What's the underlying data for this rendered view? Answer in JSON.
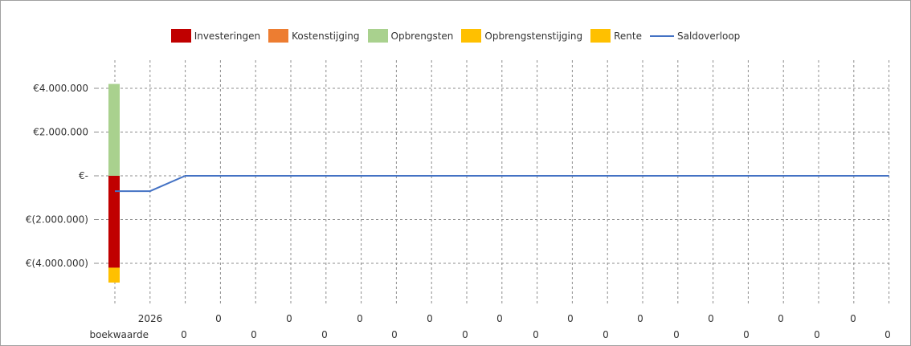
{
  "chart_data": {
    "type": "bar",
    "legend": [
      {
        "name": "Investeringen",
        "color": "#c00000",
        "kind": "bar"
      },
      {
        "name": "Kostenstijging",
        "color": "#ed7d31",
        "kind": "bar"
      },
      {
        "name": "Opbrengsten",
        "color": "#a9d18e",
        "kind": "bar"
      },
      {
        "name": "Opbrengstenstijging",
        "color": "#ffc000",
        "kind": "bar"
      },
      {
        "name": "Rente",
        "color": "#ffc000",
        "kind": "bar"
      },
      {
        "name": "Saldoverloop",
        "color": "#4472c4",
        "kind": "line"
      }
    ],
    "legend_position": "top",
    "y_ticks": [
      {
        "value": 4000000,
        "label": "€4.000.000"
      },
      {
        "value": 2000000,
        "label": "€2.000.000"
      },
      {
        "value": 0,
        "label": "€-"
      },
      {
        "value": -2000000,
        "label": "€(2.000.000)"
      },
      {
        "value": -4000000,
        "label": "€(4.000.000)"
      }
    ],
    "ylim": [
      -5800000,
      5700000
    ],
    "grid": true,
    "bars": {
      "Opbrengsten": 4200000,
      "Investeringen": -4200000,
      "Rente": -680000
    },
    "line_name": "Saldoverloop",
    "line_values": [
      -700000,
      -700000,
      0,
      0,
      0,
      0,
      0,
      0,
      0,
      0,
      0,
      0,
      0,
      0,
      0,
      0,
      0,
      0,
      0,
      0,
      0,
      0,
      0
    ],
    "row1": {
      "labels": [
        "2026",
        "0",
        "0",
        "0",
        "0",
        "0",
        "0",
        "0",
        "0",
        "0",
        "0",
        "0"
      ]
    },
    "row2": {
      "title": "boekwaarde",
      "labels": [
        "0",
        "0",
        "0",
        "0",
        "0",
        "0",
        "0",
        "0",
        "0",
        "0",
        "0",
        "0"
      ]
    }
  }
}
